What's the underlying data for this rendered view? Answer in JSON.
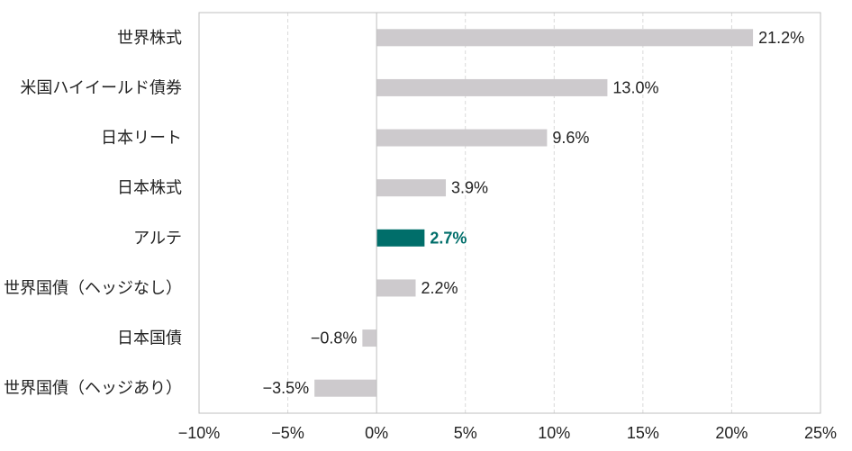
{
  "chart_data": {
    "type": "bar",
    "orientation": "horizontal",
    "categories": [
      "世界株式",
      "米国ハイイールド債券",
      "日本リート",
      "日本株式",
      "アルテ",
      "世界国債（ヘッジなし）",
      "日本国債",
      "世界国債（ヘッジあり）"
    ],
    "values": [
      21.2,
      13.0,
      9.6,
      3.9,
      2.7,
      2.2,
      -0.8,
      -3.5
    ],
    "value_labels": [
      "21.2%",
      "13.0%",
      "9.6%",
      "3.9%",
      "2.7%",
      "2.2%",
      "−0.8%",
      "−3.5%"
    ],
    "highlight_index": 4,
    "xlim": [
      -10,
      25
    ],
    "xticks": [
      -10,
      -5,
      0,
      5,
      10,
      15,
      20,
      25
    ],
    "xtick_labels": [
      "−10%",
      "−5%",
      "0%",
      "5%",
      "10%",
      "15%",
      "20%",
      "25%"
    ],
    "grid": "vertical-dashed",
    "colors": {
      "bar": "#cdcacd",
      "highlight_bar": "#006e6a",
      "highlight_text": "#006e6a",
      "grid": "#d9d9d9",
      "axis": "#bfbfbf"
    }
  }
}
